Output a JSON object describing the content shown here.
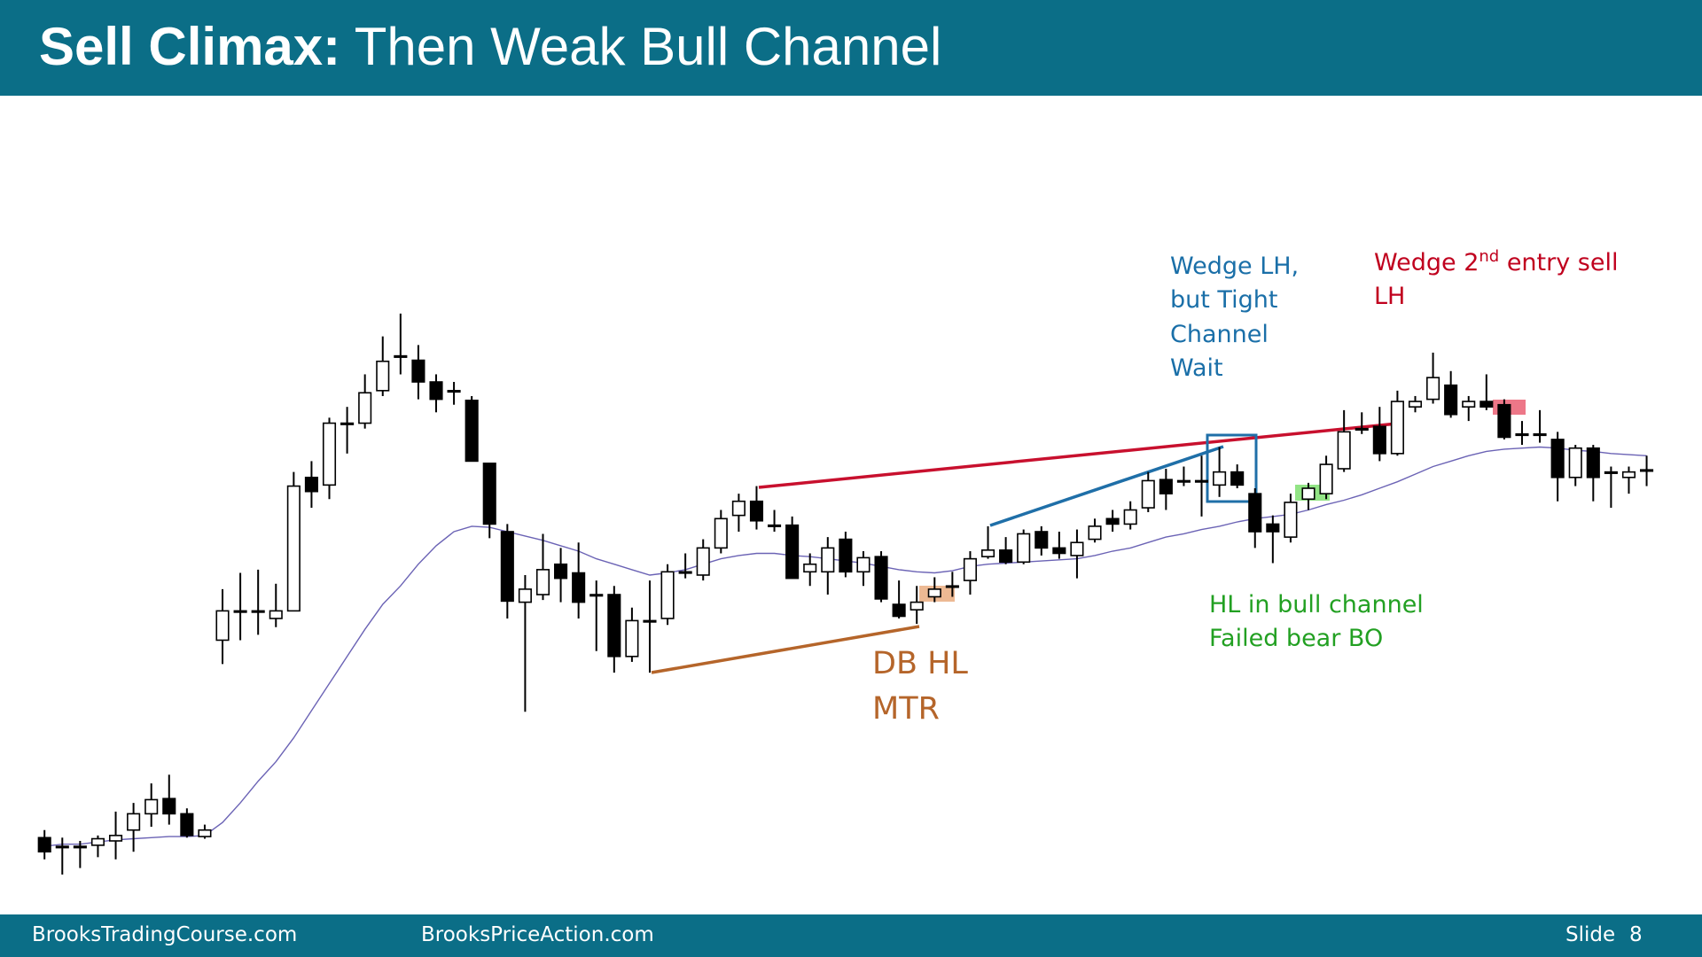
{
  "header": {
    "title_bold": "Sell Climax:",
    "title_rest": " Then Weak Bull Channel"
  },
  "chart_data": {
    "type": "candlestick",
    "ylim": [
      -40,
      620
    ],
    "up_color": "#ffffff",
    "down_color": "#000000",
    "open": [
      28,
      20,
      20,
      21,
      25,
      35,
      50,
      64,
      50,
      29,
      210,
      237,
      237,
      230,
      237,
      360,
      353,
      410,
      410,
      440,
      472,
      468,
      448,
      440,
      431,
      373,
      310,
      245,
      252,
      280,
      272,
      252,
      252,
      195,
      228,
      230,
      273,
      270,
      295,
      325,
      338,
      316,
      316,
      273,
      273,
      303,
      273,
      287,
      243,
      238,
      250,
      260,
      265,
      287,
      293,
      282,
      310,
      295,
      288,
      303,
      322,
      317,
      332,
      358,
      357,
      357,
      353,
      365,
      345,
      317,
      305,
      340,
      345,
      368,
      405,
      407,
      382,
      425,
      432,
      445,
      425,
      430,
      427,
      400,
      400,
      395,
      360,
      387,
      365,
      360,
      367
    ],
    "high": [
      35,
      28,
      25,
      30,
      52,
      60,
      78,
      86,
      55,
      40,
      257,
      272,
      275,
      262,
      365,
      375,
      415,
      425,
      455,
      490,
      511,
      482,
      455,
      448,
      435,
      373,
      317,
      270,
      308,
      295,
      300,
      265,
      260,
      240,
      265,
      280,
      290,
      303,
      330,
      345,
      352,
      330,
      324,
      290,
      305,
      310,
      292,
      292,
      265,
      260,
      268,
      273,
      292,
      315,
      305,
      312,
      315,
      310,
      312,
      322,
      330,
      338,
      365,
      368,
      370,
      380,
      388,
      372,
      350,
      325,
      345,
      355,
      380,
      422,
      420,
      425,
      440,
      435,
      475,
      458,
      435,
      455,
      432,
      412,
      422,
      402,
      390,
      390,
      370,
      370,
      380
    ],
    "low": [
      8,
      -6,
      0,
      10,
      8,
      15,
      38,
      40,
      28,
      27,
      188,
      210,
      215,
      222,
      237,
      332,
      340,
      382,
      405,
      435,
      455,
      432,
      420,
      427,
      375,
      304,
      230,
      144,
      247,
      245,
      230,
      200,
      180,
      190,
      180,
      224,
      267,
      265,
      290,
      310,
      312,
      310,
      267,
      260,
      252,
      268,
      260,
      245,
      230,
      225,
      245,
      250,
      252,
      285,
      280,
      280,
      288,
      285,
      267,
      300,
      310,
      312,
      328,
      330,
      352,
      324,
      342,
      350,
      295,
      281,
      300,
      330,
      340,
      365,
      400,
      375,
      380,
      420,
      428,
      415,
      412,
      422,
      395,
      390,
      392,
      338,
      352,
      338,
      332,
      345,
      352
    ],
    "close": [
      15,
      20,
      20,
      27,
      30,
      50,
      63,
      50,
      30,
      35,
      237,
      237,
      237,
      237,
      352,
      347,
      410,
      410,
      438,
      467,
      472,
      448,
      432,
      440,
      375,
      317,
      246,
      257,
      275,
      267,
      245,
      252,
      195,
      228,
      228,
      273,
      273,
      295,
      322,
      338,
      320,
      316,
      267,
      280,
      295,
      273,
      286,
      248,
      232,
      245,
      257,
      260,
      285,
      293,
      282,
      308,
      295,
      290,
      300,
      315,
      317,
      330,
      357,
      345,
      357,
      357,
      365,
      353,
      310,
      310,
      337,
      350,
      372,
      402,
      405,
      382,
      430,
      430,
      452,
      418,
      430,
      425,
      397,
      400,
      400,
      360,
      387,
      360,
      365,
      365,
      367
    ],
    "ma": {
      "color": "#6b63b5",
      "values": [
        20,
        22,
        22,
        24,
        26,
        27,
        28,
        29,
        29,
        30,
        42,
        60,
        80,
        98,
        120,
        145,
        170,
        195,
        220,
        243,
        260,
        280,
        297,
        310,
        315,
        314,
        310,
        306,
        302,
        297,
        292,
        285,
        280,
        275,
        270,
        272,
        275,
        280,
        285,
        288,
        290,
        290,
        288,
        287,
        285,
        283,
        281,
        278,
        275,
        273,
        272,
        274,
        278,
        280,
        281,
        282,
        283,
        284,
        285,
        288,
        292,
        295,
        300,
        305,
        308,
        312,
        315,
        319,
        322,
        324,
        326,
        330,
        335,
        339,
        344,
        350,
        356,
        363,
        370,
        375,
        380,
        384,
        386,
        387,
        388,
        387,
        385,
        384,
        382,
        381,
        380
      ]
    }
  },
  "notes": {
    "wedge_lh": [
      "Wedge LH,",
      "but Tight",
      "Channel",
      "Wait"
    ],
    "wedge_2nd": {
      "pre": "Wedge 2",
      "sup": "nd",
      "post": " entry sell",
      "line2": "LH"
    },
    "hl": [
      "HL in bull channel",
      "Failed bear BO"
    ],
    "db": [
      "DB HL",
      "MTR"
    ]
  },
  "footer": {
    "left": "BrooksTradingCourse.com",
    "middle": "BrooksPriceAction.com",
    "slide_label": "Slide",
    "slide_number": "8"
  }
}
